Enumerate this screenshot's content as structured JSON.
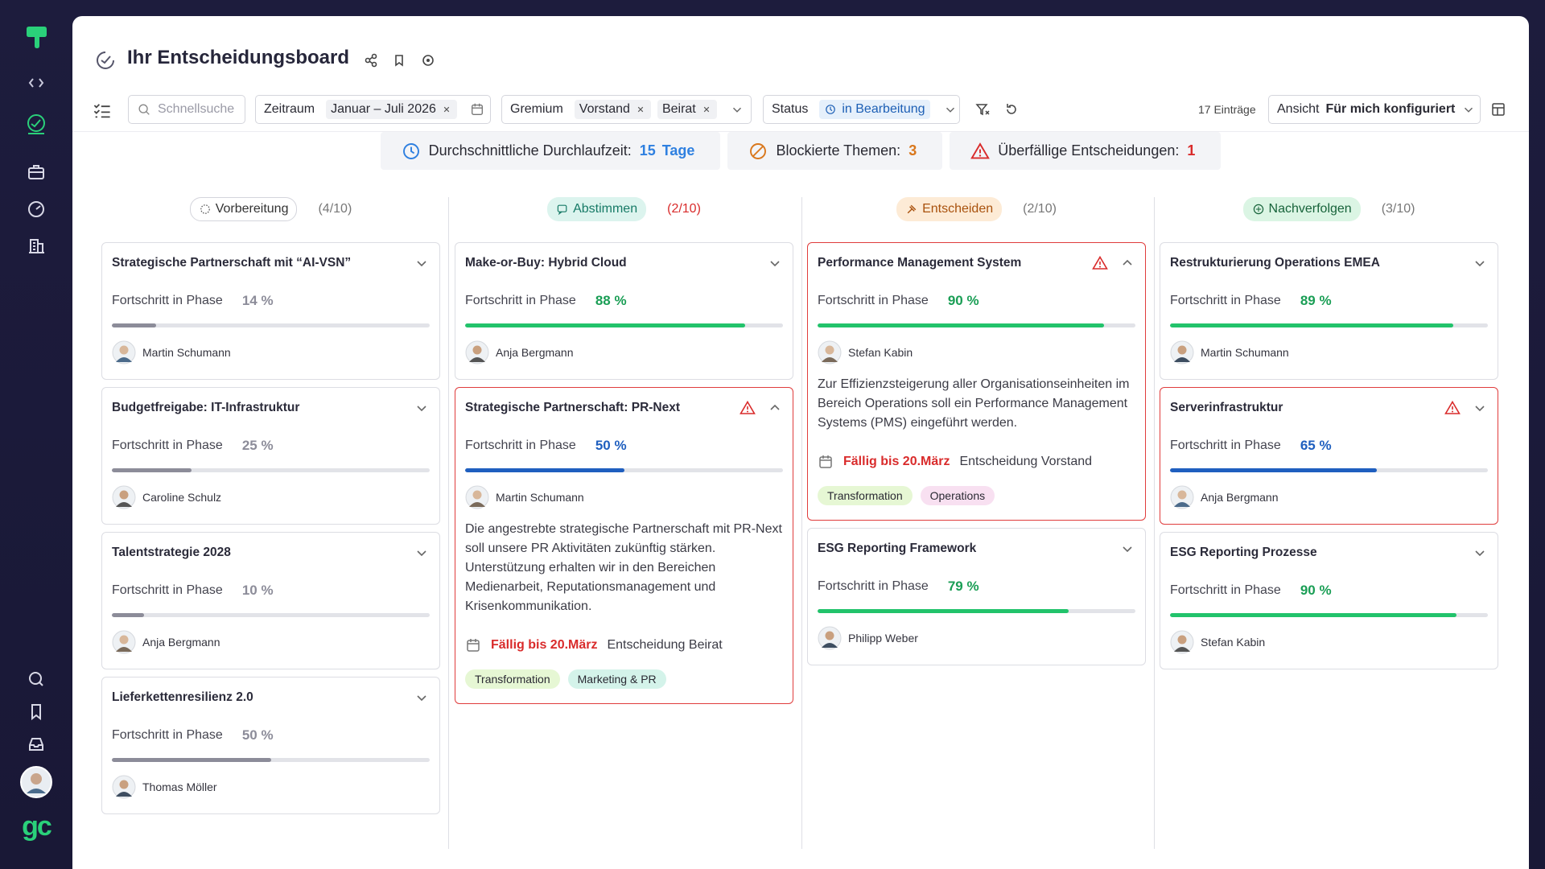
{
  "sidebar": {
    "brand": "gc"
  },
  "header": {
    "title": "Ihr Entscheidungsboard"
  },
  "toolbar": {
    "search_placeholder": "Schnellsuche",
    "filters": [
      {
        "label": "Zeitraum",
        "chips": [
          "Januar – Juli 2026"
        ]
      },
      {
        "label": "Gremium",
        "chips": [
          "Vorstand",
          "Beirat"
        ]
      },
      {
        "label": "Status",
        "chips": [
          "in Bearbeitung"
        ]
      }
    ],
    "count": "17 Einträge",
    "view": {
      "label": "Ansicht",
      "value": "Für mich konfiguriert"
    }
  },
  "stats": [
    {
      "label": "Durchschnittliche Durchlaufzeit:",
      "value": 15,
      "unit": "Tage",
      "color": "#2f80e0"
    },
    {
      "label": "Blockierte Themen:",
      "value": 3,
      "color": "#d9771c"
    },
    {
      "label": "Überfällige Entscheidungen:",
      "value": 1,
      "color": "#d92b2b"
    }
  ],
  "columns": [
    {
      "name": "Vorbereitung",
      "count": "(4/10)",
      "badge": "#ffffff",
      "badge_text": "#333333",
      "count_color": "#777777",
      "cards": [
        {
          "title": "Strategische Partnerschaft mit “AI-VSN”",
          "progress_label": "Fortschritt in Phase",
          "progress": {
            "value": 14,
            "label": "14 %"
          },
          "color": "#8c8c99",
          "owner": "Martin Schumann"
        },
        {
          "title": "Budgetfreigabe: IT-Infrastruktur",
          "progress_label": "Fortschritt in Phase",
          "progress": {
            "value": 25,
            "label": "25 %"
          },
          "color": "#8c8c99",
          "owner": "Caroline Schulz"
        },
        {
          "title": "Talentstrategie 2028",
          "progress_label": "Fortschritt in Phase",
          "progress": {
            "value": 10,
            "label": "10 %"
          },
          "color": "#8c8c99",
          "owner": "Anja Bergmann"
        },
        {
          "title": "Lieferkettenresilienz 2.0",
          "progress_label": "Fortschritt in Phase",
          "progress": {
            "value": 50,
            "label": "50 %"
          },
          "color": "#8c8c99",
          "owner": "Thomas Möller"
        }
      ]
    },
    {
      "name": "Abstimmen",
      "count": "(2/10)",
      "badge": "#dcf4ee",
      "badge_text": "#167a66",
      "count_color": "#d92b2b",
      "cards": [
        {
          "title": "Make-or-Buy: Hybrid Cloud",
          "progress_label": "Fortschritt in Phase",
          "progress": {
            "value": 88,
            "label": "88 %"
          },
          "color": "#22c36b",
          "owner": "Anja Bergmann"
        },
        {
          "title": "Strategische Partnerschaft: PR-Next",
          "progress_label": "Fortschritt in Phase",
          "progress": {
            "value": 50,
            "label": "50 %"
          },
          "color": "#1f5fbf",
          "owner": "Martin Schumann",
          "warning": true,
          "expanded": true,
          "description": "Die angestrebte strategische Partnerschaft mit PR-Next soll unsere PR Aktivitäten zukünftig stärken. Unterstützung erhalten wir in den Bereichen Medienarbeit, Reputationsmanagement und Krisenkommunikation.",
          "due": "Fällig bis 20.März",
          "decision": "Entscheidung Beirat",
          "tags": [
            {
              "text": "Transformation",
              "color": "#e6f7d4"
            },
            {
              "text": "Marketing & PR",
              "color": "#d4f3ea"
            }
          ]
        }
      ]
    },
    {
      "name": "Entscheiden",
      "count": "(2/10)",
      "badge": "#fdebd6",
      "badge_text": "#a9520e",
      "count_color": "#777777",
      "cards": [
        {
          "title": "Performance Management System",
          "progress_label": "Fortschritt in Phase",
          "progress": {
            "value": 90,
            "label": "90 %"
          },
          "color": "#22c36b",
          "owner": "Stefan Kabin",
          "warning": true,
          "expanded": true,
          "description": "Zur Effizienzsteigerung aller Organisationseinheiten im Bereich Operations soll ein Performance Management Systems (PMS) eingeführt werden.",
          "due": "Fällig bis 20.März",
          "decision": "Entscheidung Vorstand",
          "tags": [
            {
              "text": "Transformation",
              "color": "#e6f7d4"
            },
            {
              "text": "Operations",
              "color": "#f8e0f1"
            }
          ]
        },
        {
          "title": "ESG Reporting Framework",
          "progress_label": "Fortschritt in Phase",
          "progress": {
            "value": 79,
            "label": "79 %"
          },
          "color": "#22c36b",
          "owner": "Philipp Weber"
        }
      ]
    },
    {
      "name": "Nachverfolgen",
      "count": "(3/10)",
      "badge": "#dbf5e4",
      "badge_text": "#17633a",
      "count_color": "#777777",
      "cards": [
        {
          "title": "Restrukturierung Operations EMEA",
          "progress_label": "Fortschritt in Phase",
          "progress": {
            "value": 89,
            "label": "89 %"
          },
          "color": "#22c36b",
          "owner": "Martin Schumann"
        },
        {
          "title": "Serverinfrastruktur",
          "progress_label": "Fortschritt in Phase",
          "progress": {
            "value": 65,
            "label": "65 %"
          },
          "color": "#1f5fbf",
          "owner": "Anja Bergmann",
          "warning": true
        },
        {
          "title": "ESG Reporting Prozesse",
          "progress_label": "Fortschritt in Phase",
          "progress": {
            "value": 90,
            "label": "90 %"
          },
          "color": "#22c36b",
          "owner": "Stefan Kabin"
        }
      ]
    }
  ]
}
